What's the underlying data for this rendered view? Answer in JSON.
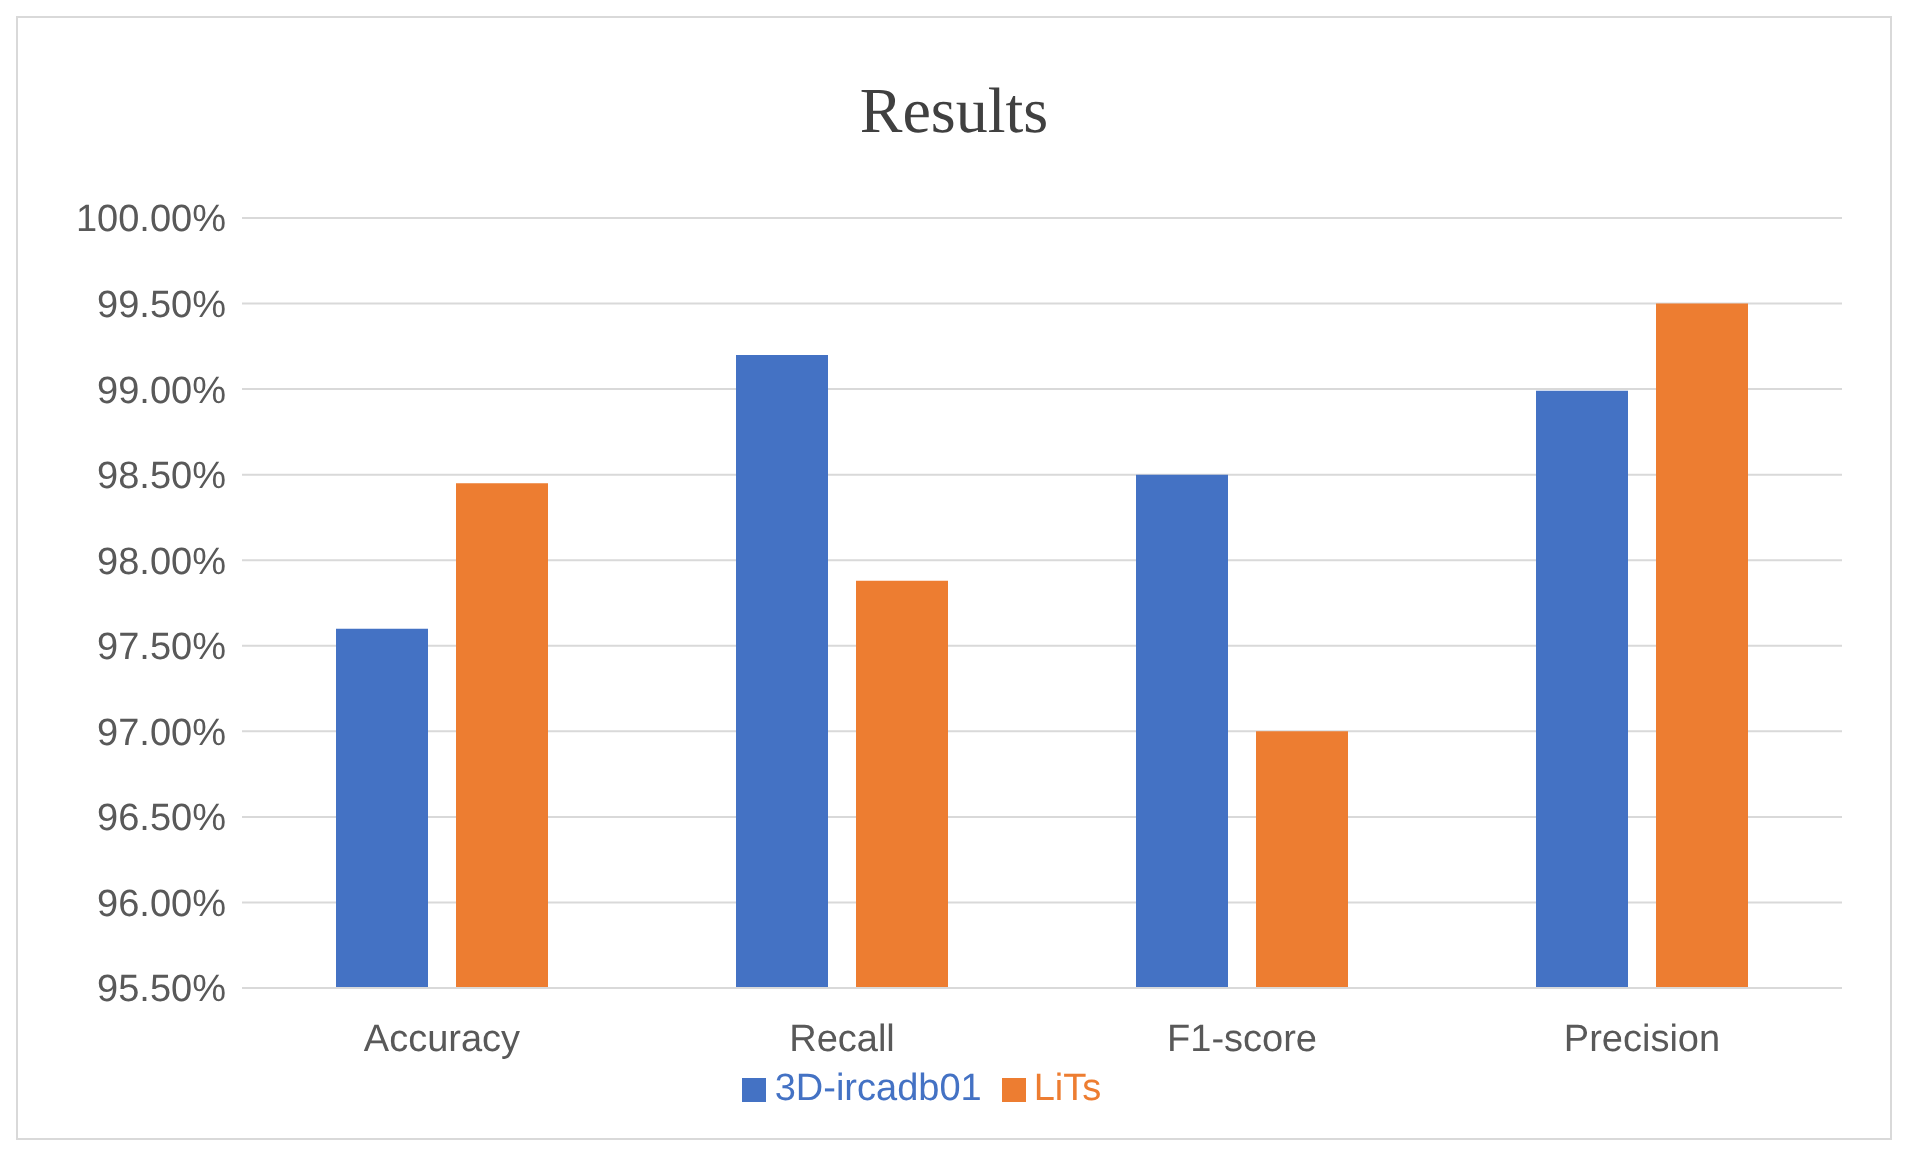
{
  "chart_data": {
    "type": "bar",
    "title": "Results",
    "categories": [
      "Accuracy",
      "Recall",
      "F1-score",
      "Precision"
    ],
    "series": [
      {
        "name": "3D-ircadb01",
        "color": "#4472c4",
        "values": [
          97.6,
          99.2,
          98.5,
          98.99
        ]
      },
      {
        "name": "LiTs",
        "color": "#ed7d31",
        "values": [
          98.45,
          97.88,
          97.0,
          99.5
        ]
      }
    ],
    "ylim": [
      95.5,
      100
    ],
    "yticks": [
      {
        "value": 95.5,
        "label": "95.50%"
      },
      {
        "value": 96,
        "label": "96.00%"
      },
      {
        "value": 96.5,
        "label": "96.50%"
      },
      {
        "value": 97,
        "label": "97.00%"
      },
      {
        "value": 97.5,
        "label": "97.50%"
      },
      {
        "value": 98,
        "label": "98.00%"
      },
      {
        "value": 98.5,
        "label": "98.50%"
      },
      {
        "value": 99,
        "label": "99.00%"
      },
      {
        "value": 99.5,
        "label": "99.50%"
      },
      {
        "value": 100,
        "label": "100.00%"
      }
    ],
    "grid": "y",
    "legend": "bottom"
  }
}
